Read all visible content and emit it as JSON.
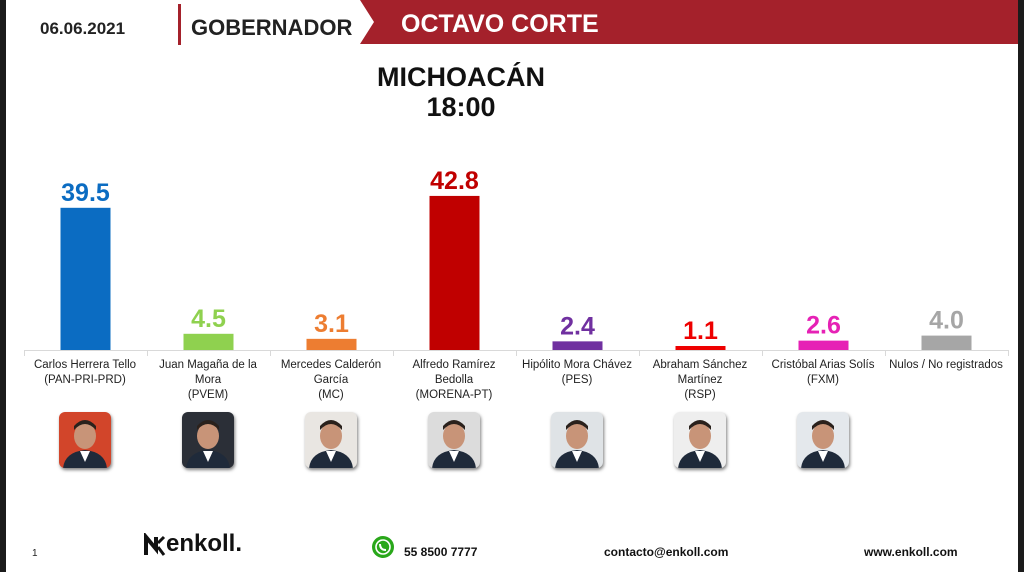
{
  "header": {
    "date": "06.06.2021",
    "race": "GOBERNADOR",
    "cut": "OCTAVO CORTE"
  },
  "title": {
    "state": "MICHOACÁN",
    "time": "18:00"
  },
  "colors": {
    "band": "#a4212b"
  },
  "chart_data": {
    "type": "bar",
    "categories": [
      "Carlos Herrera Tello",
      "Juan Magaña de la Mora",
      "Mercedes Calderón García",
      "Alfredo Ramírez Bedolla",
      "Hipólito Mora Chávez",
      "Abraham Sánchez Martínez",
      "Cristóbal Arias Solís",
      "Nulos / No registrados"
    ],
    "values": [
      39.5,
      4.5,
      3.1,
      42.8,
      2.4,
      1.1,
      2.6,
      4.0
    ],
    "labels": [
      "39.5",
      "4.5",
      "3.1",
      "42.8",
      "2.4",
      "1.1",
      "2.6",
      "4.0"
    ],
    "colors": [
      "#0b6cc2",
      "#8fd14f",
      "#ed7d31",
      "#c00000",
      "#7030a0",
      "#ee0000",
      "#e621b5",
      "#a6a6a6"
    ],
    "ylim": [
      0,
      50
    ],
    "grid": false
  },
  "candidates": [
    {
      "name": "Carlos Herrera Tello",
      "party": "(PAN-PRI-PRD)",
      "photo_bg": "#d2452a",
      "has_photo": true
    },
    {
      "name": "Juan Magaña de la Mora",
      "party": "(PVEM)",
      "photo_bg": "#2b2f37",
      "has_photo": true
    },
    {
      "name": "Mercedes Calderón García",
      "party": "(MC)",
      "photo_bg": "#e9e6e2",
      "has_photo": true
    },
    {
      "name": "Alfredo Ramírez Bedolla",
      "party": "(MORENA-PT)",
      "photo_bg": "#dcdcdc",
      "has_photo": true
    },
    {
      "name": "Hipólito Mora Chávez",
      "party": "(PES)",
      "photo_bg": "#dfe3e6",
      "has_photo": true
    },
    {
      "name": "Abraham Sánchez Martínez",
      "party": "(RSP)",
      "photo_bg": "#eeeeee",
      "has_photo": true
    },
    {
      "name": "Cristóbal Arias Solís",
      "party": "(FXM)",
      "photo_bg": "#e4e8ec",
      "has_photo": true
    },
    {
      "name": "Nulos / No registrados",
      "party": "",
      "photo_bg": "",
      "has_photo": false
    }
  ],
  "footer": {
    "page": "1",
    "logo": "enkoll.",
    "phone": "55 8500 7777",
    "email": "contacto@enkoll.com",
    "web": "www.enkoll.com",
    "whatsapp_icon": "whatsapp-icon"
  }
}
